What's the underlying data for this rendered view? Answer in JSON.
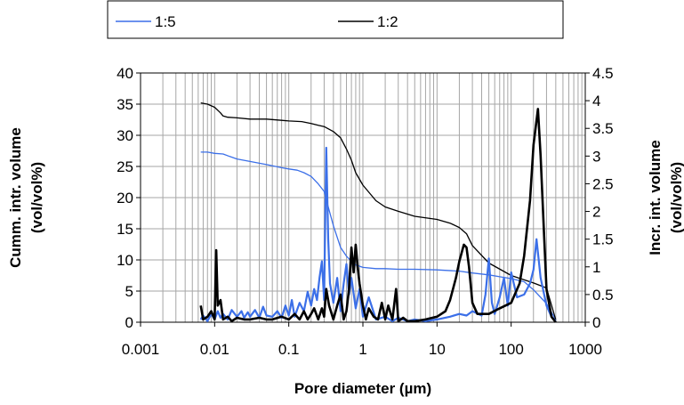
{
  "chart_data": {
    "type": "line",
    "title": "",
    "xlabel": "Pore diameter   (µm)",
    "ylabel_left_line1": "Cumm. intr. volume",
    "ylabel_left_line2": "(vol/vol%)",
    "ylabel_right_line1": "Incr. int. volume",
    "ylabel_right_line2": "(vol/vol%)",
    "x_scale": "log",
    "xlim": [
      0.001,
      1000
    ],
    "ylim_left": [
      0,
      40
    ],
    "ylim_right": [
      0,
      4.5
    ],
    "x_ticks": [
      "0.001",
      "0.01",
      "0.1",
      "1",
      "10",
      "100",
      "1000"
    ],
    "y_left_ticks": [
      "0",
      "5",
      "10",
      "15",
      "20",
      "25",
      "30",
      "35",
      "40"
    ],
    "y_right_ticks": [
      "0",
      "0.5",
      "1",
      "1.5",
      "2",
      "2.5",
      "3",
      "3.5",
      "4",
      "4.5"
    ],
    "grid": true,
    "legend_position": "top",
    "colors": {
      "1:5": "#3b6fe8",
      "1:2": "#000000"
    },
    "series": [
      {
        "name": "1:5",
        "kind": "cumulative",
        "axis": "left",
        "x": [
          0.0065,
          0.008,
          0.01,
          0.013,
          0.016,
          0.02,
          0.03,
          0.05,
          0.08,
          0.1,
          0.13,
          0.16,
          0.2,
          0.25,
          0.3,
          0.35,
          0.4,
          0.5,
          0.6,
          0.7,
          0.8,
          1,
          1.5,
          2,
          3,
          5,
          10,
          20,
          30,
          50,
          70,
          100,
          150,
          200,
          300,
          400
        ],
        "y": [
          27.3,
          27.3,
          27.1,
          27.0,
          26.6,
          26.2,
          25.8,
          25.3,
          24.8,
          24.6,
          24.4,
          24.0,
          23.4,
          22.2,
          21.0,
          18.0,
          15.5,
          12.0,
          10.6,
          9.8,
          9.2,
          8.8,
          8.6,
          8.6,
          8.5,
          8.5,
          8.4,
          8.2,
          7.9,
          7.6,
          7.3,
          7.0,
          6.5,
          5.2,
          3.0,
          0.4
        ]
      },
      {
        "name": "1:2",
        "kind": "cumulative",
        "axis": "left",
        "x": [
          0.0065,
          0.008,
          0.01,
          0.012,
          0.013,
          0.015,
          0.02,
          0.03,
          0.05,
          0.08,
          0.1,
          0.15,
          0.2,
          0.25,
          0.3,
          0.4,
          0.5,
          0.6,
          0.7,
          0.8,
          1,
          1.5,
          2,
          3,
          5,
          10,
          15,
          20,
          25,
          30,
          50,
          100,
          150,
          200,
          300,
          400
        ],
        "y": [
          35.2,
          35.0,
          34.5,
          33.6,
          33.1,
          32.9,
          32.8,
          32.6,
          32.6,
          32.4,
          32.3,
          32.2,
          31.9,
          31.6,
          31.4,
          30.6,
          29.6,
          27.8,
          26.0,
          24.0,
          22.0,
          19.5,
          18.5,
          17.8,
          17.0,
          16.5,
          15.9,
          15.2,
          14.2,
          12.3,
          9.5,
          7.5,
          6.8,
          6.3,
          5.5,
          0.4
        ]
      },
      {
        "name": "1:5",
        "kind": "incremental",
        "axis": "right",
        "x": [
          0.0065,
          0.007,
          0.008,
          0.009,
          0.01,
          0.011,
          0.012,
          0.013,
          0.015,
          0.017,
          0.02,
          0.023,
          0.025,
          0.028,
          0.03,
          0.035,
          0.04,
          0.045,
          0.05,
          0.06,
          0.07,
          0.08,
          0.09,
          0.1,
          0.11,
          0.12,
          0.14,
          0.16,
          0.18,
          0.2,
          0.22,
          0.24,
          0.26,
          0.28,
          0.3,
          0.32,
          0.34,
          0.36,
          0.4,
          0.45,
          0.5,
          0.55,
          0.6,
          0.65,
          0.7,
          0.8,
          0.9,
          1.0,
          1.2,
          1.5,
          2,
          2.5,
          3,
          4,
          5,
          7,
          10,
          15,
          20,
          25,
          30,
          40,
          45,
          50,
          55,
          60,
          70,
          80,
          90,
          100,
          120,
          150,
          180,
          200,
          220,
          250,
          300,
          350,
          400
        ],
        "y": [
          0.05,
          0.12,
          0.02,
          0.15,
          0.05,
          0.2,
          0.08,
          0.15,
          0.05,
          0.22,
          0.1,
          0.2,
          0.08,
          0.18,
          0.1,
          0.22,
          0.08,
          0.28,
          0.12,
          0.1,
          0.2,
          0.08,
          0.3,
          0.12,
          0.4,
          0.1,
          0.35,
          0.2,
          0.55,
          0.3,
          0.6,
          0.4,
          0.8,
          1.1,
          0.4,
          3.15,
          1.5,
          0.7,
          0.35,
          0.8,
          0.2,
          0.7,
          1.05,
          0.5,
          0.8,
          0.25,
          0.6,
          0.1,
          0.45,
          0.05,
          0.1,
          0.02,
          0.08,
          0.02,
          0.05,
          0.02,
          0.05,
          0.1,
          0.15,
          0.12,
          0.2,
          0.12,
          0.5,
          1.15,
          0.35,
          0.15,
          0.45,
          0.8,
          0.3,
          0.9,
          0.45,
          0.5,
          0.7,
          0.95,
          1.5,
          0.8,
          0.3,
          0.1,
          0.02
        ]
      },
      {
        "name": "1:2",
        "kind": "incremental",
        "axis": "right",
        "x": [
          0.0065,
          0.007,
          0.008,
          0.009,
          0.01,
          0.0105,
          0.011,
          0.012,
          0.013,
          0.015,
          0.017,
          0.02,
          0.025,
          0.03,
          0.04,
          0.05,
          0.06,
          0.08,
          0.1,
          0.12,
          0.14,
          0.16,
          0.18,
          0.2,
          0.22,
          0.25,
          0.28,
          0.3,
          0.32,
          0.35,
          0.4,
          0.45,
          0.5,
          0.55,
          0.6,
          0.65,
          0.7,
          0.75,
          0.8,
          0.85,
          0.9,
          1.0,
          1.1,
          1.2,
          1.4,
          1.6,
          1.8,
          2.0,
          2.2,
          2.5,
          2.8,
          3.0,
          3.5,
          4,
          5,
          7,
          10,
          13,
          15,
          18,
          20,
          23,
          25,
          27,
          30,
          35,
          40,
          50,
          70,
          100,
          130,
          150,
          180,
          200,
          230,
          250,
          280,
          300,
          350,
          400
        ],
        "y": [
          0.3,
          0.05,
          0.1,
          0.2,
          0.05,
          1.3,
          0.3,
          0.4,
          0.05,
          0.1,
          0.02,
          0.08,
          0.05,
          0.05,
          0.08,
          0.05,
          0.05,
          0.1,
          0.05,
          0.15,
          0.05,
          0.2,
          0.05,
          0.15,
          0.25,
          0.05,
          0.25,
          0.1,
          0.6,
          0.3,
          0.05,
          0.3,
          0.5,
          0.05,
          0.2,
          0.6,
          1.35,
          0.9,
          1.4,
          1.0,
          0.7,
          0.3,
          0.05,
          0.25,
          0.1,
          0.05,
          0.35,
          0.05,
          0.3,
          0.05,
          0.6,
          0.02,
          0.08,
          0.02,
          0.02,
          0.05,
          0.1,
          0.2,
          0.4,
          0.8,
          1.1,
          1.4,
          1.35,
          1.0,
          0.35,
          0.15,
          0.15,
          0.15,
          0.25,
          0.35,
          0.7,
          1.2,
          2.2,
          3.2,
          3.85,
          3.0,
          1.5,
          0.6,
          0.1,
          0.0
        ]
      }
    ]
  }
}
